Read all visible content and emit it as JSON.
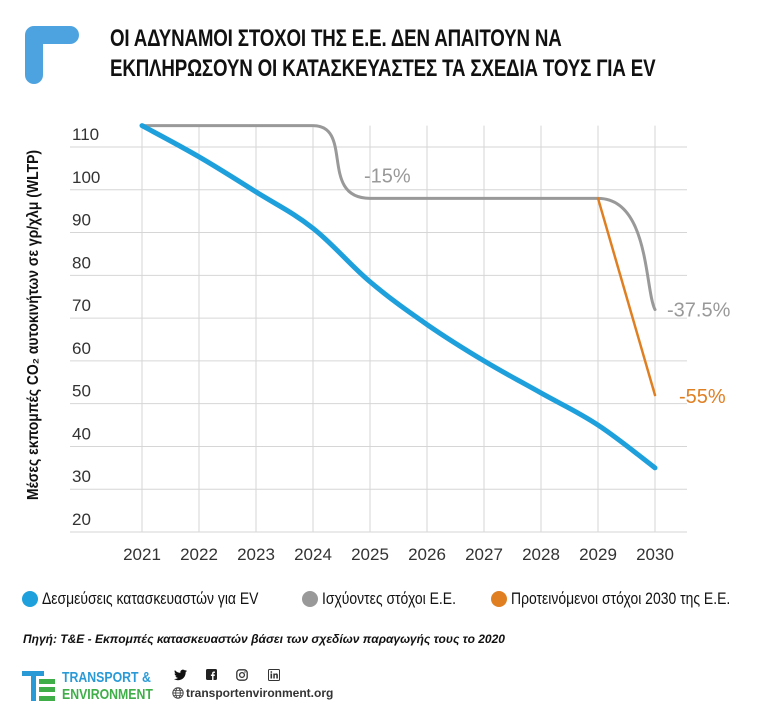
{
  "header": {
    "title_line1": "ΟΙ ΑΔΥΝΑΜΟΙ ΣΤΟΧΟΙ ΤΗΣ Ε.Ε. ΔΕΝ ΑΠΑΙΤΟΥΝ ΝΑ",
    "title_line2": "ΕΚΠΛΗΡΩΣΟΥΝ ΟΙ ΚΑΤΑΣΚΕΥΑΣΤΕΣ ΤΑ ΣΧΕΔΙΑ ΤΟΥΣ ΓΙΑ EV",
    "corner_icon": "corner-bracket-icon",
    "accent_color": "#4da3e0"
  },
  "chart_data": {
    "type": "line",
    "title": "ΟΙ ΑΔΥΝΑΜΟΙ ΣΤΟΧΟΙ ΤΗΣ Ε.Ε. ΔΕΝ ΑΠΑΙΤΟΥΝ ΝΑ ΕΚΠΛΗΡΩΣΟΥΝ ΟΙ ΚΑΤΑΣΚΕΥΑΣΤΕΣ ΤΑ ΣΧΕΔΙΑ ΤΟΥΣ ΓΙΑ EV",
    "xlabel": "",
    "ylabel": "Μέσες εκπομπές CO₂ αυτοκινήτων σε γρ/χλμ (WLTP)",
    "x": [
      2021,
      2022,
      2023,
      2024,
      2025,
      2026,
      2027,
      2028,
      2029,
      2030
    ],
    "x_tick_labels": [
      "2021",
      "2022",
      "2023",
      "2024",
      "2025",
      "2026",
      "2027",
      "2028",
      "2029",
      "2030"
    ],
    "y_tick_labels": [
      "110",
      "100",
      "90",
      "80",
      "70",
      "60",
      "50",
      "40",
      "30",
      "20"
    ],
    "y_ticks": [
      110,
      100,
      90,
      80,
      70,
      60,
      50,
      40,
      30,
      20
    ],
    "ylim": [
      20,
      115
    ],
    "grid": true,
    "legend_position": "bottom",
    "series": [
      {
        "name": "Δεσμεύσεις κατασκευαστών για EV",
        "color": "#1da0dc",
        "x": [
          2021,
          2022,
          2023,
          2024,
          2025,
          2026,
          2027,
          2028,
          2029,
          2030
        ],
        "values": [
          115,
          107.7,
          99.5,
          91,
          78.5,
          68.5,
          60,
          52.5,
          45,
          35
        ]
      },
      {
        "name": "Ισχύοντες στόχοι Ε.Ε.",
        "color": "#999999",
        "x": [
          2021,
          2024,
          2025,
          2029,
          2030
        ],
        "values": [
          115,
          115,
          98,
          98,
          72
        ]
      },
      {
        "name": "Προτεινόμενοι στόχοι 2030 της Ε.Ε.",
        "color": "#e07f22",
        "x": [
          2029,
          2030
        ],
        "values": [
          98,
          52
        ]
      }
    ],
    "annotations": [
      {
        "text": "-15%",
        "x": 2025,
        "y": 98,
        "color": "#999999"
      },
      {
        "text": "-37.5%",
        "x": 2030,
        "y": 72,
        "color": "#999999"
      },
      {
        "text": "-55%",
        "x": 2030,
        "y": 52,
        "color": "#e07f22"
      }
    ]
  },
  "legend": {
    "items": [
      {
        "label": "Δεσμεύσεις κατασκευαστών για EV",
        "color": "#1da0dc"
      },
      {
        "label": "Ισχύοντες στόχοι Ε.Ε.",
        "color": "#999999"
      },
      {
        "label": "Προτεινόμενοι στόχοι 2030 της Ε.Ε.",
        "color": "#e07f22"
      }
    ]
  },
  "source": "Πηγή: T&E - Εκπομπές κατασκευαστών βάσει των σχεδίων παραγωγής τους το 2020",
  "footer": {
    "org_line1": "TRANSPORT &",
    "org_line2": "ENVIRONMENT",
    "website": "transportenvironment.org",
    "social_icons": [
      "twitter-icon",
      "facebook-icon",
      "instagram-icon",
      "linkedin-icon"
    ],
    "social_glyphs": [
      "🐦",
      "f",
      "◎",
      "in"
    ],
    "globe_glyph": "🌐",
    "brand_blue": "#2a9ad6",
    "brand_green": "#3fae49"
  }
}
